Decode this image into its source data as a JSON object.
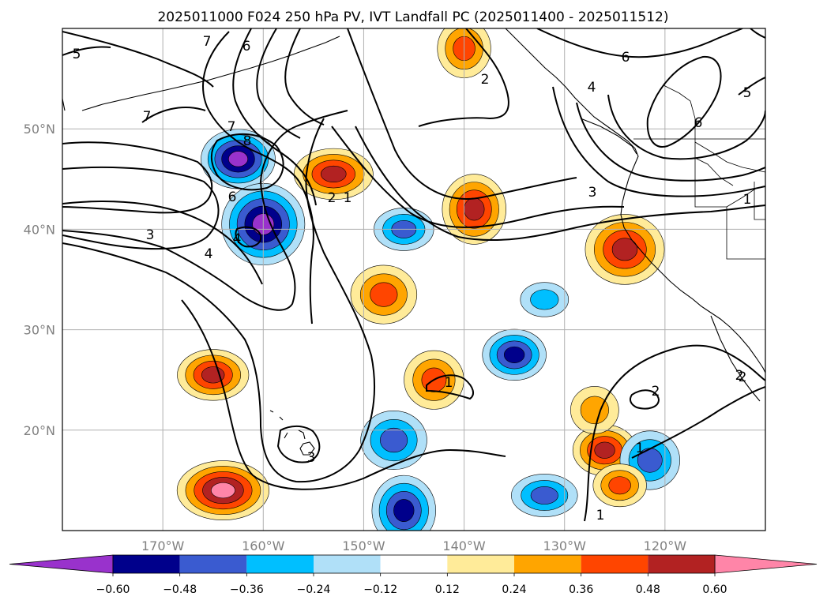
{
  "chart_data": {
    "type": "heatmap",
    "title": "2025011000 F024 250 hPa PV, IVT Landfall PC (2025011400 - 2025011512)",
    "projection": "map (plate carree)",
    "xlim": [
      -180,
      -110
    ],
    "ylim": [
      10,
      60
    ],
    "x_ticks": [
      {
        "value": -170,
        "label": "170°W"
      },
      {
        "value": -160,
        "label": "160°W"
      },
      {
        "value": -150,
        "label": "150°W"
      },
      {
        "value": -140,
        "label": "140°W"
      },
      {
        "value": -130,
        "label": "130°W"
      },
      {
        "value": -120,
        "label": "120°W"
      }
    ],
    "y_ticks": [
      {
        "value": 20,
        "label": "20°N"
      },
      {
        "value": 30,
        "label": "30°N"
      },
      {
        "value": 40,
        "label": "40°N"
      },
      {
        "value": 50,
        "label": "50°N"
      }
    ],
    "grid": true,
    "colorbar": {
      "orientation": "horizontal",
      "extend": "both",
      "levels": [
        -0.6,
        -0.48,
        -0.36,
        -0.24,
        -0.12,
        0.12,
        0.24,
        0.36,
        0.48,
        0.6
      ],
      "tick_labels": [
        "−0.60",
        "−0.48",
        "−0.36",
        "−0.24",
        "−0.12",
        "0.12",
        "0.24",
        "0.36",
        "0.48",
        "0.60"
      ],
      "colors": [
        "#9932cc",
        "#00008b",
        "#3a5bd0",
        "#00bfff",
        "#b0e0f8",
        "#ffffff",
        "#ffeb99",
        "#ffa500",
        "#ff4500",
        "#b22222",
        "#ff85a8"
      ]
    },
    "contour_labels": [
      "7",
      "6",
      "5",
      "7",
      "8",
      "7",
      "6",
      "4",
      "3",
      "4",
      "2",
      "1",
      "2",
      "4",
      "6",
      "5",
      "6",
      "3",
      "1",
      "1",
      "2",
      "3",
      "2",
      "1",
      "1",
      "2"
    ],
    "shaded_regions": [
      {
        "lon": -162.5,
        "lat": 47.0,
        "value": -0.6
      },
      {
        "lon": -160.0,
        "lat": 40.5,
        "value": -0.6
      },
      {
        "lon": -153.0,
        "lat": 45.5,
        "value": 0.48
      },
      {
        "lon": -139.0,
        "lat": 42.0,
        "value": 0.48
      },
      {
        "lon": -146.0,
        "lat": 40.0,
        "value": -0.36
      },
      {
        "lon": -124.0,
        "lat": 38.0,
        "value": 0.48
      },
      {
        "lon": -135.0,
        "lat": 27.5,
        "value": -0.48
      },
      {
        "lon": -143.0,
        "lat": 25.0,
        "value": 0.36
      },
      {
        "lon": -164.0,
        "lat": 14.0,
        "value": 0.6
      },
      {
        "lon": -146.0,
        "lat": 12.0,
        "value": -0.48
      },
      {
        "lon": -165.0,
        "lat": 25.5,
        "value": 0.48
      },
      {
        "lon": -147.0,
        "lat": 19.0,
        "value": -0.36
      },
      {
        "lon": -126.0,
        "lat": 18.0,
        "value": 0.48
      },
      {
        "lon": -121.5,
        "lat": 17.0,
        "value": -0.36
      },
      {
        "lon": -132.0,
        "lat": 13.5,
        "value": -0.36
      },
      {
        "lon": -140.0,
        "lat": 58.0,
        "value": 0.36
      },
      {
        "lon": -132.0,
        "lat": 33.0,
        "value": -0.24
      },
      {
        "lon": -148.0,
        "lat": 33.5,
        "value": 0.36
      },
      {
        "lon": -124.5,
        "lat": 14.5,
        "value": 0.36
      },
      {
        "lon": -127.0,
        "lat": 22.0,
        "value": 0.24
      }
    ]
  }
}
